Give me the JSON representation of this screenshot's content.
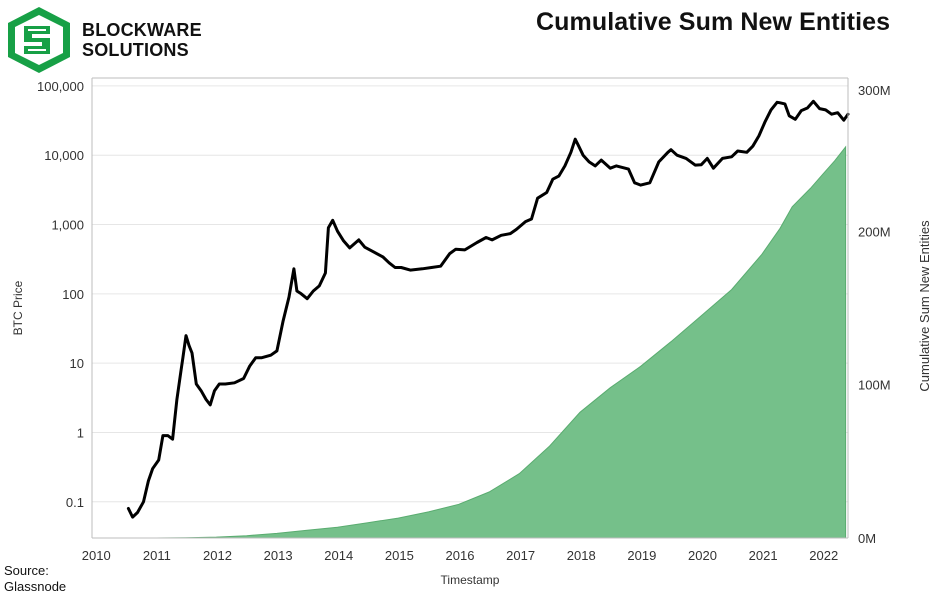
{
  "header": {
    "title": "Cumulative Sum New Entities",
    "logo_line1": "BLOCKWARE",
    "logo_line2": "SOLUTIONS"
  },
  "footer": {
    "source_line1": "Source:",
    "source_line2": "Glassnode"
  },
  "colors": {
    "price_line": "#000000",
    "area_fill": "#75c08a",
    "area_edge": "#5aac70",
    "logo_green": "#17a046",
    "grid": "#e6e6e6"
  },
  "chart_data": {
    "type": "line",
    "title": "Cumulative Sum New Entities",
    "xlabel": "Timestamp",
    "ylabel_left": "BTC Price",
    "ylabel_right": "Cumulative Sum New Entities",
    "x_ticks": [
      "2010",
      "2011",
      "2012",
      "2013",
      "2014",
      "2015",
      "2016",
      "2017",
      "2018",
      "2019",
      "2020",
      "2021",
      "2022"
    ],
    "y_left_ticks": [
      "0.1",
      "1",
      "10",
      "100",
      "1,000",
      "10,000",
      "100,000"
    ],
    "y_left_scale": "log",
    "y_left_range": [
      0.03,
      130000
    ],
    "y_right_ticks": [
      "0M",
      "100M",
      "200M",
      "300M"
    ],
    "y_right_range": [
      0,
      300000000
    ],
    "x_range": [
      2009.95,
      2022.42
    ],
    "grid": "horizontal",
    "series": [
      {
        "name": "BTC Price",
        "axis": "left",
        "style": "line",
        "x": [
          2010.55,
          2010.62,
          2010.7,
          2010.8,
          2010.88,
          2010.95,
          2011.05,
          2011.12,
          2011.2,
          2011.28,
          2011.35,
          2011.42,
          2011.45,
          2011.5,
          2011.55,
          2011.6,
          2011.67,
          2011.75,
          2011.83,
          2011.9,
          2011.97,
          2012.05,
          2012.15,
          2012.3,
          2012.45,
          2012.55,
          2012.65,
          2012.75,
          2012.9,
          2013.0,
          2013.1,
          2013.2,
          2013.28,
          2013.33,
          2013.4,
          2013.5,
          2013.6,
          2013.7,
          2013.8,
          2013.85,
          2013.92,
          2014.0,
          2014.1,
          2014.2,
          2014.35,
          2014.45,
          2014.6,
          2014.75,
          2014.85,
          2014.95,
          2015.05,
          2015.2,
          2015.4,
          2015.55,
          2015.7,
          2015.85,
          2015.95,
          2016.1,
          2016.3,
          2016.45,
          2016.55,
          2016.7,
          2016.85,
          2016.95,
          2017.1,
          2017.2,
          2017.3,
          2017.45,
          2017.55,
          2017.65,
          2017.75,
          2017.85,
          2017.92,
          2017.97,
          2018.05,
          2018.15,
          2018.25,
          2018.35,
          2018.5,
          2018.6,
          2018.8,
          2018.9,
          2019.0,
          2019.15,
          2019.3,
          2019.45,
          2019.5,
          2019.6,
          2019.75,
          2019.9,
          2020.0,
          2020.1,
          2020.2,
          2020.35,
          2020.5,
          2020.6,
          2020.75,
          2020.85,
          2020.95,
          2021.05,
          2021.15,
          2021.25,
          2021.3,
          2021.38,
          2021.45,
          2021.55,
          2021.65,
          2021.75,
          2021.85,
          2021.95,
          2022.05,
          2022.15,
          2022.25,
          2022.35,
          2022.42
        ],
        "y": [
          0.08,
          0.06,
          0.07,
          0.1,
          0.2,
          0.3,
          0.4,
          0.9,
          0.9,
          0.8,
          3,
          8,
          12,
          25,
          18,
          14,
          5,
          4,
          3,
          2.5,
          4,
          5,
          5,
          5.2,
          6,
          9,
          12,
          12,
          13,
          15,
          40,
          90,
          230,
          110,
          100,
          85,
          110,
          130,
          200,
          900,
          1150,
          800,
          580,
          460,
          600,
          470,
          400,
          340,
          280,
          240,
          240,
          220,
          230,
          240,
          250,
          380,
          440,
          430,
          550,
          650,
          600,
          700,
          740,
          850,
          1100,
          1200,
          2400,
          2900,
          4500,
          5000,
          7000,
          11000,
          17000,
          14000,
          10000,
          8000,
          7000,
          8500,
          6500,
          7000,
          6300,
          4000,
          3700,
          4000,
          8000,
          11000,
          12000,
          10000,
          9000,
          7200,
          7300,
          9000,
          6500,
          9000,
          9500,
          11500,
          11000,
          13500,
          19000,
          30000,
          45000,
          58000,
          57000,
          55000,
          37000,
          33000,
          44000,
          48000,
          60000,
          47000,
          45000,
          39000,
          41000,
          32000,
          39000
        ]
      },
      {
        "name": "Cumulative Sum New Entities",
        "axis": "right",
        "style": "area",
        "x": [
          2010.5,
          2011.0,
          2011.5,
          2012.0,
          2012.5,
          2013.0,
          2013.5,
          2014.0,
          2014.5,
          2015.0,
          2015.5,
          2016.0,
          2016.5,
          2017.0,
          2017.5,
          2018.0,
          2018.5,
          2019.0,
          2019.5,
          2020.0,
          2020.5,
          2021.0,
          2021.3,
          2021.5,
          2021.8,
          2022.0,
          2022.2,
          2022.38
        ],
        "y": [
          0,
          0,
          200000,
          600000,
          1500000,
          3000000,
          5000000,
          7000000,
          10000000,
          13000000,
          17000000,
          22000000,
          30000000,
          42000000,
          60000000,
          82000000,
          98000000,
          112000000,
          128000000,
          145000000,
          162000000,
          185000000,
          202000000,
          216000000,
          228000000,
          237000000,
          246000000,
          255000000
        ]
      }
    ]
  }
}
